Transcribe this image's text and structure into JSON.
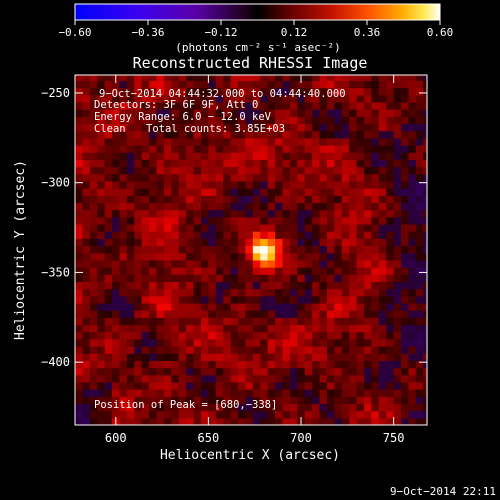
{
  "chart_data": {
    "type": "heatmap",
    "title": "Reconstructed RHESSI Image",
    "xlabel": "Heliocentric X (arcsec)",
    "ylabel": "Heliocentric Y (arcsec)",
    "xlim": [
      578,
      768
    ],
    "ylim": [
      -435,
      -240
    ],
    "x_ticks": [
      600,
      650,
      700,
      750
    ],
    "x_tick_labels": [
      "600",
      "650",
      "700",
      "750"
    ],
    "y_ticks": [
      -250,
      -300,
      -350,
      -400
    ],
    "y_tick_labels": [
      "−250",
      "−300",
      "−350",
      "−400"
    ],
    "colorbar": {
      "min": -0.6,
      "max": 0.6,
      "ticks": [
        -0.6,
        -0.36,
        -0.12,
        0.12,
        0.36,
        0.6
      ],
      "tick_labels": [
        "−0.60",
        "−0.36",
        "−0.12",
        "0.12",
        "0.36",
        "0.60"
      ],
      "unit": "(photons cm⁻² s⁻¹ asec⁻²)",
      "colormap": "rainbow-neg + hot-pos"
    },
    "source": {
      "x": 680,
      "y": -338,
      "peak_value": 0.6,
      "fwhm_arcsec": 12
    },
    "background_level": 0.08,
    "pixel_size_arcsec": 4,
    "annotations": {
      "time_range": "9−Oct−2014 04:44:32.000 to 04:44:40.000",
      "detectors": "Detectors: 3F 6F 9F, Att 0",
      "energy_range": "Energy Range: 6.0 − 12.0 keV",
      "clean_label": "Clean",
      "total_counts": "Total counts: 3.85E+03",
      "peak_position": "Position of Peak = [680,−338]"
    }
  },
  "footer": {
    "timestamp": "9−Oct−2014 22:11"
  }
}
